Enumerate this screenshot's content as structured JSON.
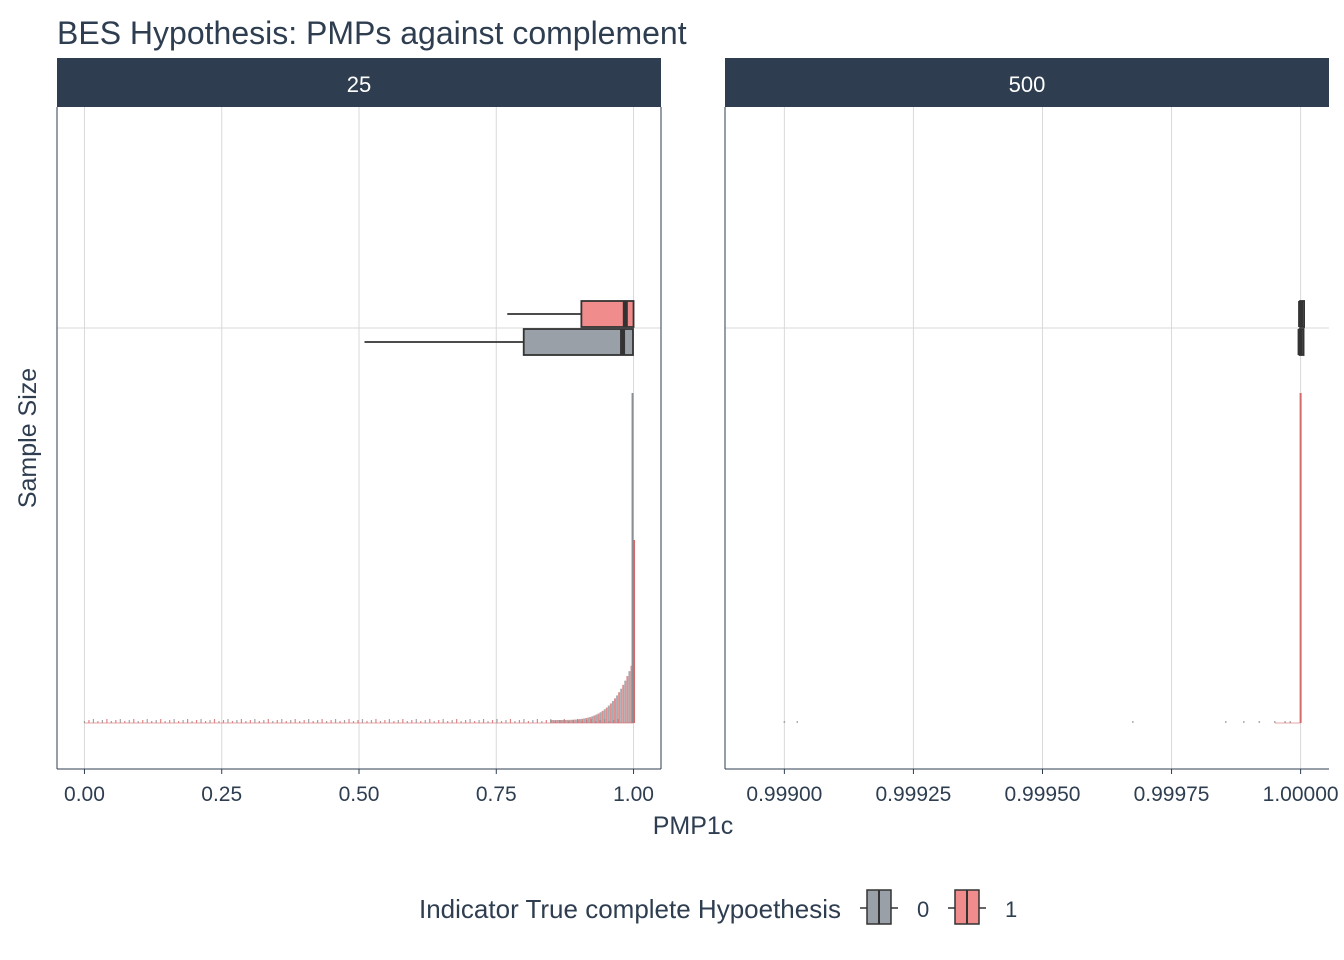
{
  "chart_data": {
    "type": "boxplot",
    "title": "BES Hypothesis: PMPs against complement",
    "xlabel": "PMP1c",
    "ylabel": "Sample Size",
    "legend": {
      "title": "Indicator True complete Hypoethesis",
      "position": "bottom",
      "entries": [
        {
          "label": "0",
          "color": "#9aa0a8"
        },
        {
          "label": "1",
          "color": "#f08c8c"
        }
      ]
    },
    "colors": {
      "strip": "#2e3e50",
      "strip_text": "#ffffff",
      "grid": "#d9d9d9",
      "outline": "#333333",
      "hist0": "#8a8f96",
      "hist1": "#d46a6a"
    },
    "grid": true,
    "panels": [
      {
        "label": "25",
        "xlim": [
          -0.05,
          1.05
        ],
        "xticks": [
          0.0,
          0.25,
          0.5,
          0.75,
          1.0
        ],
        "xtick_labels": [
          "0.00",
          "0.25",
          "0.50",
          "0.75",
          "1.00"
        ],
        "boxes": [
          {
            "group": "1",
            "whisker_low": 0.77,
            "q1": 0.905,
            "median": 0.985,
            "q3": 1.0,
            "whisker_high": 1.0
          },
          {
            "group": "0",
            "whisker_low": 0.51,
            "q1": 0.8,
            "median": 0.98,
            "q3": 0.999,
            "whisker_high": 1.0
          }
        ]
      },
      {
        "label": "500",
        "xlim": [
          0.998885,
          1.000055
        ],
        "xticks": [
          0.999,
          0.99925,
          0.9995,
          0.99975,
          1.0
        ],
        "xtick_labels": [
          "0.99900",
          "0.99925",
          "0.99950",
          "0.99975",
          "1.00000"
        ],
        "boxes": [
          {
            "group": "1",
            "whisker_low": 0.999999,
            "q1": 0.999999,
            "median": 1.0,
            "q3": 1.0,
            "whisker_high": 1.0
          },
          {
            "group": "0",
            "whisker_low": 0.999998,
            "q1": 0.999998,
            "median": 0.999999,
            "q3": 1.0,
            "whisker_high": 1.0
          }
        ]
      }
    ]
  }
}
